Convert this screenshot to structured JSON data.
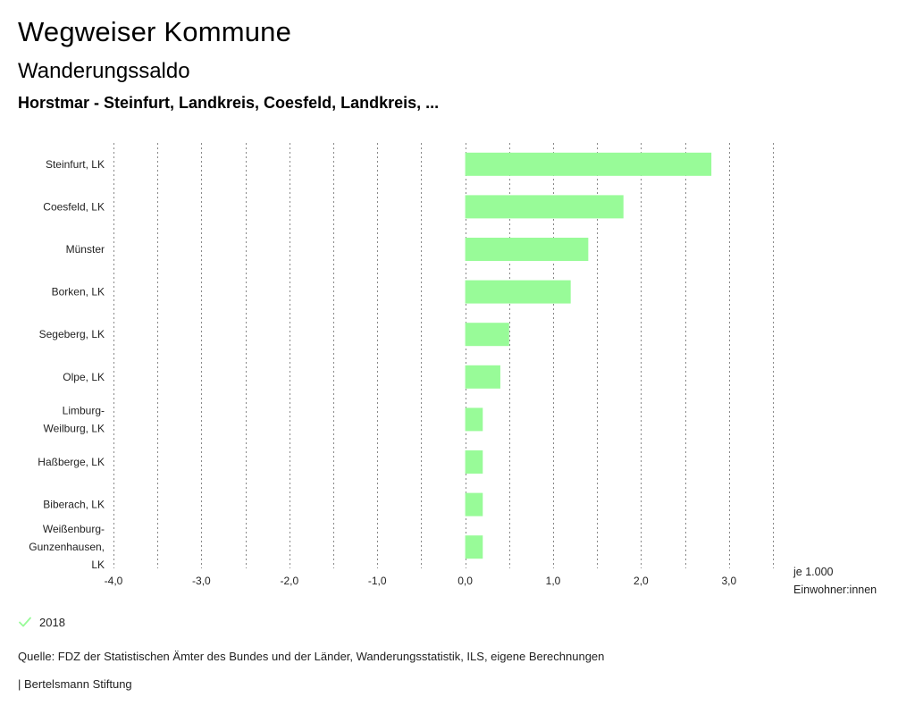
{
  "header": {
    "title": "Wegweiser Kommune",
    "subtitle": "Wanderungssaldo",
    "region": "Horstmar - Steinfurt, Landkreis, Coesfeld, Landkreis, ..."
  },
  "chart_data": {
    "type": "bar",
    "orientation": "horizontal",
    "categories": [
      "Steinfurt, LK",
      "Coesfeld, LK",
      "Münster",
      "Borken, LK",
      "Segeberg, LK",
      "Olpe, LK",
      "Limburg-Weilburg, LK",
      "Haßberge, LK",
      "Biberach, LK",
      "Weißenburg-Gunzenhausen, LK"
    ],
    "category_lines": [
      [
        "Steinfurt, LK"
      ],
      [
        "Coesfeld, LK"
      ],
      [
        "Münster"
      ],
      [
        "Borken, LK"
      ],
      [
        "Segeberg, LK"
      ],
      [
        "Olpe, LK"
      ],
      [
        "Limburg-",
        "Weilburg, LK"
      ],
      [
        "Haßberge, LK"
      ],
      [
        "Biberach, LK"
      ],
      [
        "Weißenburg-",
        "Gunzenhausen,",
        "LK"
      ]
    ],
    "series": [
      {
        "name": "2018",
        "color": "#98fb98",
        "values": [
          2.8,
          1.8,
          1.4,
          1.2,
          0.5,
          0.4,
          0.2,
          0.2,
          0.2,
          0.2
        ]
      }
    ],
    "xlim": [
      -4.0,
      3.5
    ],
    "xticks": [
      -4.0,
      -3.0,
      -2.0,
      -1.0,
      0.0,
      1.0,
      2.0,
      3.0
    ],
    "xtick_labels": [
      "-4,0",
      "-3,0",
      "-2,0",
      "-1,0",
      "0,0",
      "1,0",
      "2,0",
      "3,0"
    ],
    "grid_step": 0.5,
    "unit_label": [
      "je 1.000",
      "Einwohner:innen"
    ],
    "legend": "bottom-left"
  },
  "footer": {
    "source": "Quelle: FDZ der Statistischen Ämter des Bundes und der Länder, Wanderungsstatistik, ILS, eigene Berechnungen",
    "publisher": "| Bertelsmann Stiftung"
  },
  "colors": {
    "bar": "#98fb98",
    "grid": "#888888"
  }
}
